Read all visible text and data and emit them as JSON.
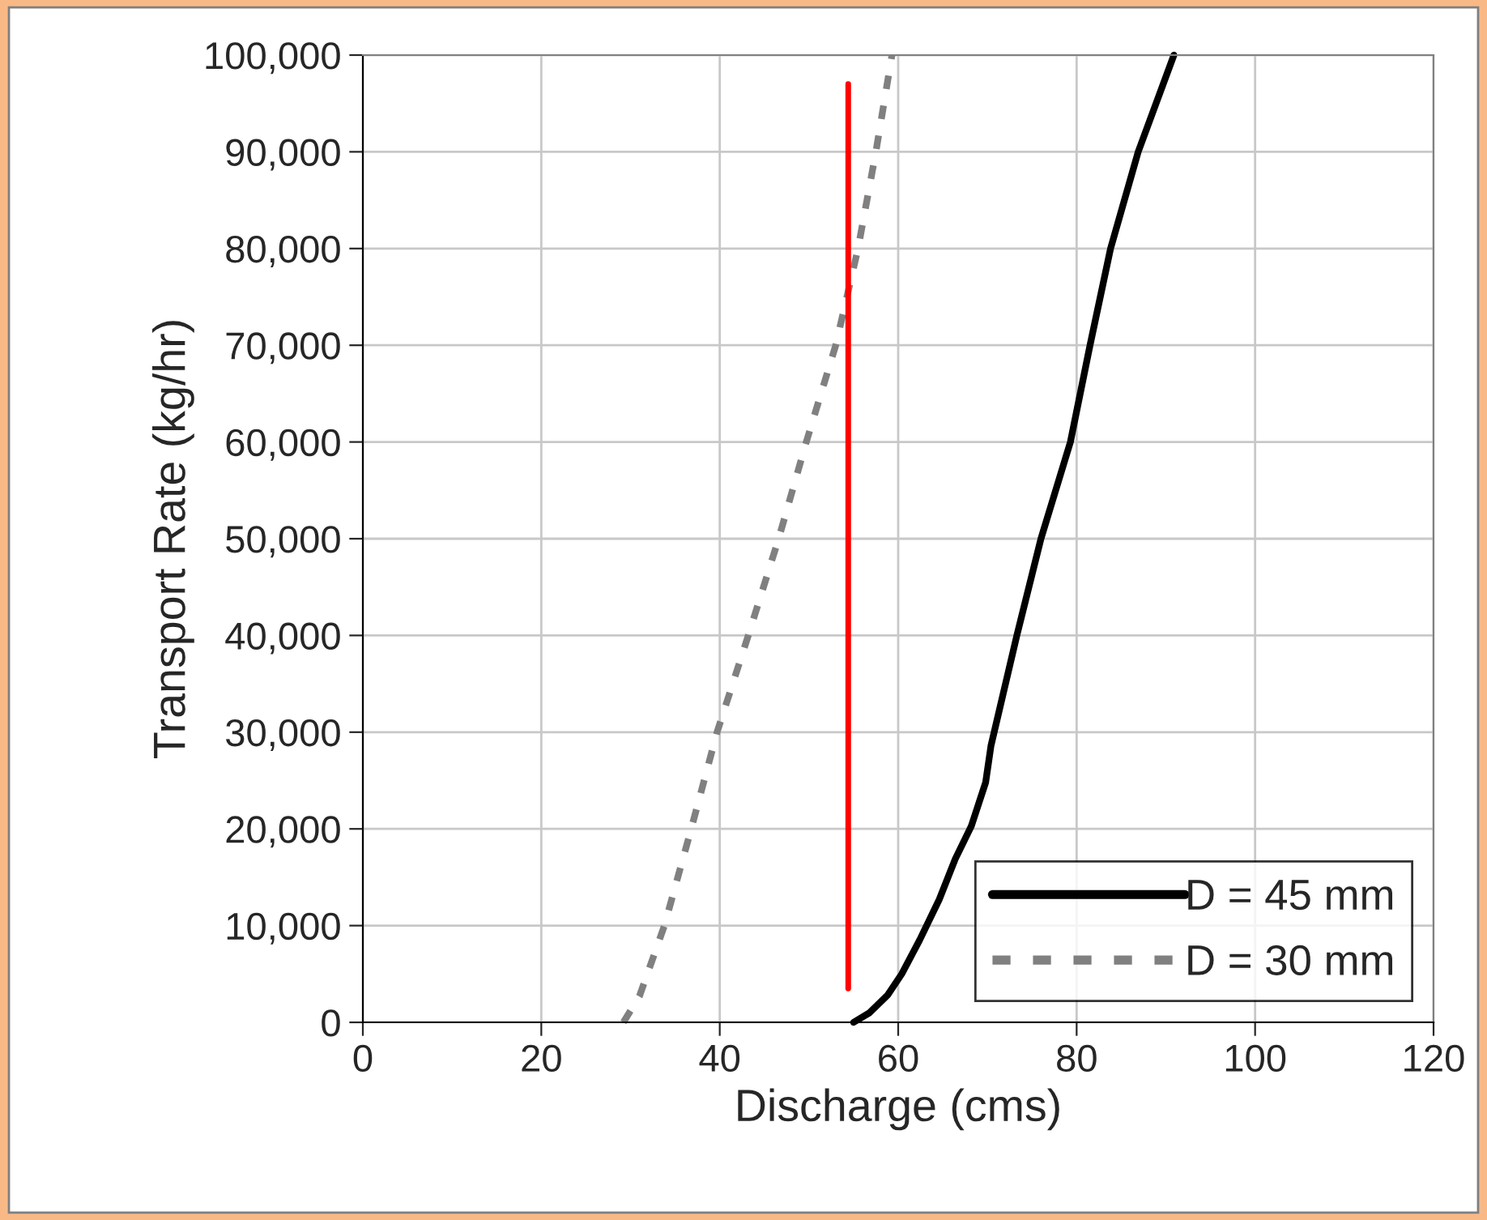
{
  "chart_data": {
    "type": "line",
    "xlabel": "Discharge (cms)",
    "ylabel": "Transport Rate (kg/hr)",
    "xlim": [
      0,
      120
    ],
    "xticks": [
      0,
      20,
      40,
      60,
      80,
      100,
      120
    ],
    "ylim": [
      0,
      100000
    ],
    "yticks": [
      {
        "value": 0,
        "label": "0"
      },
      {
        "value": 10000,
        "label": "10,000"
      },
      {
        "value": 20000,
        "label": "20,000"
      },
      {
        "value": 30000,
        "label": "30,000"
      },
      {
        "value": 40000,
        "label": "40,000"
      },
      {
        "value": 50000,
        "label": "50,000"
      },
      {
        "value": 60000,
        "label": "60,000"
      },
      {
        "value": 70000,
        "label": "70,000"
      },
      {
        "value": 80000,
        "label": "80,000"
      },
      {
        "value": 90000,
        "label": "90,000"
      },
      {
        "value": 100000,
        "label": "100,000"
      }
    ],
    "grid": true,
    "legend": "bottom right",
    "series": [
      {
        "name": "D = 45 mm",
        "color": "#000000",
        "line_style": "solid",
        "x": [
          55,
          56.8,
          58.8,
          60.4,
          62.4,
          64.6,
          66.4,
          68.2,
          69.8,
          70.4,
          73.3,
          76,
          79.3,
          81.5,
          83.8,
          86.9,
          90.9
        ],
        "values": [
          0,
          1000,
          2800,
          5000,
          8500,
          12700,
          16900,
          20300,
          24800,
          28600,
          40000,
          50000,
          60000,
          70000,
          80000,
          90000,
          100000
        ]
      },
      {
        "name": "D = 30 mm",
        "color": "#808080",
        "line_style": "dashed",
        "x": [
          29.2,
          31,
          33.8,
          36.8,
          39.7,
          43.2,
          46.6,
          49.7,
          53,
          55.5,
          57.5,
          59.3
        ],
        "values": [
          0,
          2700,
          10000,
          20000,
          30000,
          40000,
          50000,
          60000,
          70000,
          80000,
          90000,
          100000
        ]
      },
      {
        "color": "#ff0000",
        "line_style": "solid",
        "x": [
          54.4,
          54.4
        ],
        "values": [
          3500,
          97000
        ]
      }
    ]
  }
}
